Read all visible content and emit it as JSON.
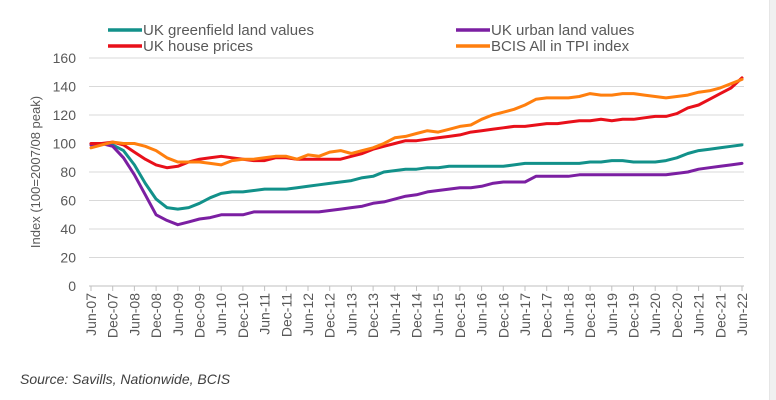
{
  "chart_data": {
    "type": "line",
    "title": "",
    "xlabel": "",
    "ylabel": "Index (100=2007/08 peak)",
    "ylim": [
      0,
      160
    ],
    "yticks": [
      0,
      20,
      40,
      60,
      80,
      100,
      120,
      140,
      160
    ],
    "grid": true,
    "legend_position": "top",
    "x_tick_labels": [
      "Jun-07",
      "Dec-07",
      "Jun-08",
      "Dec-08",
      "Jun-09",
      "Dec-09",
      "Jun-10",
      "Dec-10",
      "Jun-11",
      "Dec-11",
      "Jun-12",
      "Dec-12",
      "Jun-13",
      "Dec-13",
      "Jun-14",
      "Dec-14",
      "Jun-15",
      "Dec-15",
      "Jun-16",
      "Dec-16",
      "Jun-17",
      "Dec-17",
      "Jun-18",
      "Dec-18",
      "Jun-19",
      "Dec-19",
      "Jun-20",
      "Dec-20",
      "Jun-21",
      "Dec-21",
      "Jun-22"
    ],
    "x_frequency": "quarterly",
    "series": [
      {
        "name": "UK greenfield land values",
        "color": "#12918a",
        "values": [
          99,
          100,
          99,
          95,
          85,
          72,
          61,
          55,
          54,
          55,
          58,
          62,
          65,
          66,
          66,
          67,
          68,
          68,
          68,
          69,
          70,
          71,
          72,
          73,
          74,
          76,
          77,
          80,
          81,
          82,
          82,
          83,
          83,
          84,
          84,
          84,
          84,
          84,
          84,
          85,
          86,
          86,
          86,
          86,
          86,
          86,
          87,
          87,
          88,
          88,
          87,
          87,
          87,
          88,
          90,
          93,
          95,
          96,
          97,
          98,
          99
        ]
      },
      {
        "name": "UK urban land values",
        "color": "#7b1fa2",
        "values": [
          99,
          100,
          98,
          90,
          78,
          64,
          50,
          46,
          43,
          45,
          47,
          48,
          50,
          50,
          50,
          52,
          52,
          52,
          52,
          52,
          52,
          52,
          53,
          54,
          55,
          56,
          58,
          59,
          61,
          63,
          64,
          66,
          67,
          68,
          69,
          69,
          70,
          72,
          73,
          73,
          73,
          77,
          77,
          77,
          77,
          78,
          78,
          78,
          78,
          78,
          78,
          78,
          78,
          78,
          79,
          80,
          82,
          83,
          84,
          85,
          86
        ]
      },
      {
        "name": "UK house prices",
        "color": "#e8101a",
        "values": [
          100,
          100,
          101,
          99,
          94,
          89,
          85,
          83,
          84,
          87,
          89,
          90,
          91,
          90,
          89,
          88,
          88,
          90,
          90,
          89,
          89,
          89,
          89,
          89,
          91,
          93,
          96,
          98,
          100,
          102,
          102,
          103,
          104,
          105,
          106,
          108,
          109,
          110,
          111,
          112,
          112,
          113,
          114,
          114,
          115,
          116,
          116,
          117,
          116,
          117,
          117,
          118,
          119,
          119,
          121,
          125,
          127,
          131,
          135,
          139,
          146
        ]
      },
      {
        "name": "BCIS All in TPI index",
        "color": "#ff7f0e",
        "values": [
          97,
          99,
          101,
          100,
          100,
          98,
          95,
          90,
          87,
          87,
          87,
          86,
          85,
          88,
          89,
          89,
          90,
          91,
          91,
          89,
          92,
          91,
          94,
          95,
          93,
          95,
          97,
          100,
          104,
          105,
          107,
          109,
          108,
          110,
          112,
          113,
          117,
          120,
          122,
          124,
          127,
          131,
          132,
          132,
          132,
          133,
          135,
          134,
          134,
          135,
          135,
          134,
          133,
          132,
          133,
          134,
          136,
          137,
          139,
          142,
          145
        ]
      }
    ]
  },
  "footer": {
    "source": "Source: Savills, Nationwide, BCIS"
  }
}
